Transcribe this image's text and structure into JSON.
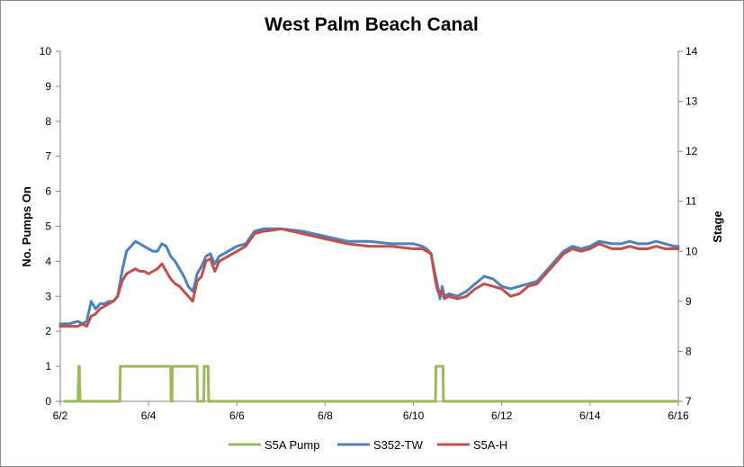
{
  "chart_data": {
    "type": "line",
    "title": "West Palm Beach Canal",
    "xlabel": "",
    "ylabel": "No. Pumps On",
    "y2label": "Stage",
    "x_ticks": [
      "6/2",
      "6/4",
      "6/6",
      "6/8",
      "6/10",
      "6/12",
      "6/14",
      "6/16"
    ],
    "x_range": [
      0,
      14
    ],
    "ylim": [
      0,
      10
    ],
    "y_ticks": [
      0,
      1,
      2,
      3,
      4,
      5,
      6,
      7,
      8,
      9,
      10
    ],
    "y2lim": [
      7,
      14
    ],
    "y2_ticks": [
      7,
      8,
      9,
      10,
      11,
      12,
      13,
      14
    ],
    "grid": false,
    "legend_position": "bottom",
    "series": [
      {
        "name": "S5A Pump",
        "axis": "left",
        "color": "#9bbb59",
        "x": [
          0.1,
          0.4,
          0.42,
          0.43,
          0.45,
          0.46,
          1.35,
          1.36,
          2.5,
          2.51,
          2.53,
          2.54,
          3.1,
          3.11,
          3.25,
          3.26,
          3.35,
          3.36,
          3.42,
          3.43,
          8.5,
          8.51,
          8.67,
          8.68,
          14.0
        ],
        "values": [
          0,
          0,
          1,
          1,
          0,
          0,
          0,
          1,
          1,
          0,
          0,
          1,
          1,
          0,
          0,
          1,
          1,
          0,
          0,
          0,
          0,
          1,
          1,
          0,
          0
        ]
      },
      {
        "name": "S352-TW",
        "axis": "right",
        "color": "#4f81bd",
        "x": [
          0.0,
          0.2,
          0.4,
          0.5,
          0.6,
          0.7,
          0.8,
          0.9,
          1.0,
          1.1,
          1.2,
          1.3,
          1.4,
          1.5,
          1.6,
          1.7,
          1.8,
          1.9,
          2.0,
          2.1,
          2.2,
          2.3,
          2.4,
          2.5,
          2.6,
          2.7,
          2.8,
          2.9,
          3.0,
          3.05,
          3.1,
          3.2,
          3.3,
          3.4,
          3.5,
          3.6,
          3.8,
          4.0,
          4.2,
          4.4,
          4.6,
          4.8,
          5.0,
          5.5,
          6.0,
          6.5,
          7.0,
          7.5,
          8.0,
          8.2,
          8.3,
          8.4,
          8.5,
          8.55,
          8.6,
          8.65,
          8.7,
          8.8,
          9.0,
          9.2,
          9.4,
          9.6,
          9.8,
          10.0,
          10.2,
          10.4,
          10.6,
          10.8,
          11.0,
          11.2,
          11.4,
          11.6,
          11.8,
          12.0,
          12.2,
          12.5,
          12.7,
          12.9,
          13.1,
          13.3,
          13.5,
          13.7,
          13.9,
          14.0
        ],
        "values": [
          8.55,
          8.55,
          8.6,
          8.55,
          8.6,
          9.0,
          8.85,
          8.95,
          8.95,
          9.0,
          9.0,
          9.1,
          9.6,
          10.0,
          10.1,
          10.2,
          10.15,
          10.1,
          10.05,
          10.0,
          10.0,
          10.15,
          10.1,
          9.9,
          9.8,
          9.65,
          9.5,
          9.3,
          9.2,
          9.35,
          9.55,
          9.7,
          9.9,
          9.95,
          9.75,
          9.9,
          10.0,
          10.1,
          10.15,
          10.4,
          10.45,
          10.45,
          10.45,
          10.4,
          10.3,
          10.2,
          10.2,
          10.15,
          10.15,
          10.1,
          10.05,
          9.95,
          9.5,
          9.3,
          9.05,
          9.3,
          9.1,
          9.15,
          9.1,
          9.2,
          9.35,
          9.5,
          9.45,
          9.3,
          9.25,
          9.3,
          9.35,
          9.4,
          9.6,
          9.8,
          10.0,
          10.1,
          10.05,
          10.1,
          10.2,
          10.15,
          10.15,
          10.2,
          10.15,
          10.15,
          10.2,
          10.15,
          10.1,
          10.1
        ]
      },
      {
        "name": "S5A-H",
        "axis": "right",
        "color": "#c0504d",
        "x": [
          0.0,
          0.2,
          0.4,
          0.5,
          0.6,
          0.7,
          0.8,
          0.9,
          1.0,
          1.1,
          1.2,
          1.3,
          1.4,
          1.5,
          1.6,
          1.7,
          1.8,
          1.9,
          2.0,
          2.1,
          2.2,
          2.3,
          2.4,
          2.5,
          2.6,
          2.7,
          2.8,
          2.9,
          3.0,
          3.05,
          3.1,
          3.2,
          3.3,
          3.4,
          3.5,
          3.6,
          3.8,
          4.0,
          4.2,
          4.4,
          4.6,
          4.8,
          5.0,
          5.5,
          6.0,
          6.5,
          7.0,
          7.5,
          8.0,
          8.2,
          8.3,
          8.4,
          8.5,
          8.55,
          8.6,
          8.65,
          8.7,
          8.8,
          9.0,
          9.2,
          9.4,
          9.6,
          9.8,
          10.0,
          10.2,
          10.4,
          10.6,
          10.8,
          11.0,
          11.2,
          11.4,
          11.6,
          11.8,
          12.0,
          12.2,
          12.5,
          12.7,
          12.9,
          13.1,
          13.3,
          13.5,
          13.7,
          13.9,
          14.0
        ],
        "values": [
          8.5,
          8.5,
          8.5,
          8.55,
          8.5,
          8.7,
          8.75,
          8.85,
          8.9,
          8.95,
          9.0,
          9.1,
          9.4,
          9.55,
          9.6,
          9.65,
          9.6,
          9.6,
          9.55,
          9.6,
          9.65,
          9.75,
          9.6,
          9.45,
          9.35,
          9.3,
          9.2,
          9.1,
          9.0,
          9.2,
          9.4,
          9.5,
          9.8,
          9.85,
          9.6,
          9.8,
          9.9,
          10.0,
          10.1,
          10.35,
          10.4,
          10.42,
          10.45,
          10.35,
          10.25,
          10.15,
          10.1,
          10.1,
          10.05,
          10.05,
          10.0,
          9.95,
          9.4,
          9.2,
          9.15,
          9.2,
          9.05,
          9.1,
          9.05,
          9.1,
          9.25,
          9.35,
          9.3,
          9.25,
          9.1,
          9.15,
          9.3,
          9.35,
          9.55,
          9.75,
          9.95,
          10.05,
          10.0,
          10.05,
          10.15,
          10.05,
          10.05,
          10.1,
          10.05,
          10.05,
          10.1,
          10.05,
          10.05,
          10.05
        ]
      }
    ]
  }
}
